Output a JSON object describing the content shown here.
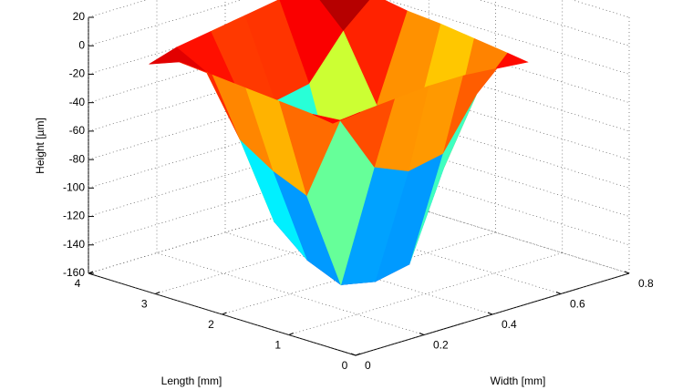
{
  "chart_data": {
    "type": "surface",
    "xlabel": "Length [mm]",
    "ylabel": "Width [mm]",
    "zlabel": "Height [µm]",
    "x": [
      0.7,
      1.0,
      1.5,
      2.0,
      2.5,
      3.0,
      3.45
    ],
    "y": [
      0.07,
      0.15,
      0.25,
      0.35,
      0.45,
      0.55,
      0.64
    ],
    "z": [
      [
        -12,
        -10,
        -8,
        -6,
        -6,
        -8,
        -10
      ],
      [
        -10,
        -20,
        -60,
        -70,
        -65,
        -30,
        -8
      ],
      [
        -8,
        -80,
        -150,
        -155,
        -150,
        -90,
        -5
      ],
      [
        -6,
        -70,
        -140,
        -150,
        -145,
        -80,
        -2
      ],
      [
        -4,
        -55,
        -120,
        -130,
        -125,
        -60,
        0
      ],
      [
        -2,
        -15,
        -40,
        -50,
        -45,
        -15,
        4
      ],
      [
        -10,
        -4,
        0,
        4,
        8,
        6,
        2
      ]
    ],
    "colormap": "jet",
    "xlim": [
      0,
      4
    ],
    "xticks": [
      0,
      1,
      2,
      3,
      4
    ],
    "ylim": [
      0,
      0.8
    ],
    "yticks": [
      0,
      0.2,
      0.4,
      0.6,
      0.8
    ],
    "zlim": [
      -160,
      20
    ],
    "zticks": [
      -160,
      -140,
      -120,
      -100,
      -80,
      -60,
      -40,
      -20,
      0,
      20
    ],
    "grid": true
  }
}
